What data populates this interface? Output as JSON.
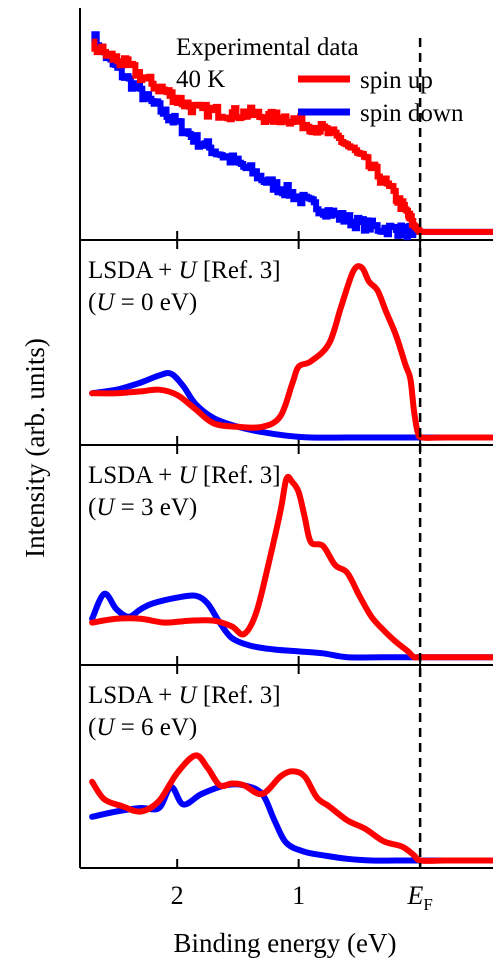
{
  "colors": {
    "spin_up": "#ff0000",
    "spin_down": "#0000ff",
    "axis": "#000000"
  },
  "chart_data": {
    "type": "line",
    "xlabel": "Binding energy (eV)",
    "ylabel": "Intensity (arb. units)",
    "xlim": [
      2.8,
      -0.6
    ],
    "x_reversed": true,
    "xticks": [
      {
        "value": 2,
        "label": "2"
      },
      {
        "value": 1,
        "label": "1"
      },
      {
        "value": 0,
        "label": "E",
        "sub": "F"
      }
    ],
    "fermi_line": {
      "x": 0,
      "style": "dashed"
    },
    "legend": {
      "placement": "top-right of top panel",
      "entries": [
        {
          "label": "spin up",
          "color": "#ff0000"
        },
        {
          "label": "spin down",
          "color": "#0000ff"
        }
      ]
    },
    "panels": [
      {
        "label_lines": [
          "Experimental data",
          "40 K"
        ],
        "noisy": true,
        "ylim": [
          0,
          1
        ],
        "series": [
          {
            "name": "spin up",
            "color": "#ff0000",
            "x": [
              2.7,
              2.55,
              2.4,
              2.25,
              2.1,
              2.0,
              1.85,
              1.7,
              1.55,
              1.4,
              1.25,
              1.1,
              0.95,
              0.8,
              0.65,
              0.5,
              0.35,
              0.2,
              0.1,
              0.05,
              0.0,
              -0.2,
              -0.4,
              -0.6
            ],
            "y": [
              0.93,
              0.88,
              0.83,
              0.76,
              0.71,
              0.67,
              0.62,
              0.61,
              0.6,
              0.6,
              0.58,
              0.58,
              0.55,
              0.52,
              0.47,
              0.39,
              0.3,
              0.19,
              0.1,
              0.05,
              0.02,
              0.02,
              0.02,
              0.02
            ]
          },
          {
            "name": "spin down",
            "color": "#0000ff",
            "x": [
              2.7,
              2.55,
              2.4,
              2.25,
              2.1,
              2.0,
              1.85,
              1.7,
              1.55,
              1.4,
              1.25,
              1.1,
              0.95,
              0.8,
              0.65,
              0.5,
              0.35,
              0.2,
              0.1,
              0.05,
              0.0,
              -0.2,
              -0.4,
              -0.6
            ],
            "y": [
              0.98,
              0.85,
              0.76,
              0.67,
              0.6,
              0.55,
              0.47,
              0.42,
              0.37,
              0.32,
              0.26,
              0.22,
              0.17,
              0.13,
              0.09,
              0.06,
              0.04,
              0.03,
              0.02,
              0.02,
              0.02,
              0.02,
              0.02,
              0.02
            ]
          }
        ]
      },
      {
        "label_lines": [
          "LSDA + U  [Ref. 3]",
          "(U = 0 eV)"
        ],
        "italic_word": "U",
        "ylim": [
          0,
          1
        ],
        "series": [
          {
            "name": "spin up",
            "color": "#ff0000",
            "x": [
              2.7,
              2.5,
              2.3,
              2.15,
              2.0,
              1.85,
              1.7,
              1.5,
              1.3,
              1.15,
              1.05,
              1.0,
              0.9,
              0.75,
              0.65,
              0.55,
              0.48,
              0.42,
              0.35,
              0.28,
              0.2,
              0.12,
              0.08,
              0.05,
              0.02,
              -0.02,
              -0.2,
              -0.4,
              -0.6
            ],
            "y": [
              0.27,
              0.27,
              0.28,
              0.29,
              0.26,
              0.18,
              0.1,
              0.08,
              0.08,
              0.14,
              0.33,
              0.42,
              0.45,
              0.55,
              0.76,
              0.96,
              0.98,
              0.9,
              0.85,
              0.73,
              0.6,
              0.43,
              0.35,
              0.17,
              0.05,
              0.02,
              0.02,
              0.02,
              0.02
            ]
          },
          {
            "name": "spin down",
            "color": "#0000ff",
            "x": [
              2.7,
              2.5,
              2.3,
              2.15,
              2.05,
              1.95,
              1.85,
              1.7,
              1.5,
              1.3,
              1.1,
              0.9,
              0.6,
              0.3,
              0.0,
              -0.3,
              -0.6
            ],
            "y": [
              0.27,
              0.29,
              0.33,
              0.37,
              0.38,
              0.31,
              0.21,
              0.13,
              0.08,
              0.05,
              0.03,
              0.02,
              0.02,
              0.02,
              0.02,
              0.02,
              0.02
            ]
          }
        ]
      },
      {
        "label_lines": [
          "LSDA + U  [Ref. 3]",
          "(U = 3 eV)"
        ],
        "italic_word": "U",
        "ylim": [
          0,
          1
        ],
        "series": [
          {
            "name": "spin up",
            "color": "#ff0000",
            "x": [
              2.7,
              2.5,
              2.3,
              2.1,
              1.9,
              1.7,
              1.55,
              1.45,
              1.35,
              1.25,
              1.15,
              1.1,
              1.05,
              1.0,
              0.95,
              0.9,
              0.8,
              0.7,
              0.6,
              0.5,
              0.4,
              0.3,
              0.2,
              0.1,
              0.05,
              0.0,
              -0.2,
              -0.4,
              -0.6
            ],
            "y": [
              0.2,
              0.22,
              0.22,
              0.2,
              0.21,
              0.21,
              0.18,
              0.14,
              0.25,
              0.5,
              0.78,
              0.95,
              0.93,
              0.88,
              0.75,
              0.62,
              0.6,
              0.5,
              0.46,
              0.34,
              0.23,
              0.16,
              0.1,
              0.05,
              0.02,
              0.02,
              0.02,
              0.02,
              0.02
            ]
          },
          {
            "name": "spin down",
            "color": "#0000ff",
            "x": [
              2.7,
              2.6,
              2.5,
              2.4,
              2.3,
              2.2,
              2.0,
              1.85,
              1.75,
              1.65,
              1.55,
              1.4,
              1.2,
              1.0,
              0.8,
              0.6,
              0.3,
              0.0,
              -0.3,
              -0.6
            ],
            "y": [
              0.22,
              0.35,
              0.27,
              0.23,
              0.27,
              0.3,
              0.33,
              0.34,
              0.3,
              0.2,
              0.12,
              0.08,
              0.06,
              0.05,
              0.04,
              0.02,
              0.02,
              0.02,
              0.02,
              0.02
            ]
          }
        ]
      },
      {
        "label_lines": [
          "LSDA + U  [Ref. 3]",
          "(U = 6 eV)"
        ],
        "italic_word": "U",
        "ylim": [
          0,
          1
        ],
        "series": [
          {
            "name": "spin up",
            "color": "#ff0000",
            "x": [
              2.7,
              2.6,
              2.45,
              2.3,
              2.15,
              2.0,
              1.85,
              1.75,
              1.65,
              1.55,
              1.45,
              1.3,
              1.15,
              1.05,
              0.95,
              0.85,
              0.75,
              0.6,
              0.45,
              0.3,
              0.15,
              0.05,
              0.0,
              -0.2,
              -0.4,
              -0.6
            ],
            "y": [
              0.47,
              0.37,
              0.33,
              0.3,
              0.36,
              0.52,
              0.62,
              0.55,
              0.45,
              0.46,
              0.45,
              0.4,
              0.5,
              0.53,
              0.5,
              0.38,
              0.33,
              0.25,
              0.2,
              0.13,
              0.1,
              0.05,
              0.02,
              0.02,
              0.02,
              0.02
            ]
          },
          {
            "name": "spin down",
            "color": "#0000ff",
            "x": [
              2.7,
              2.5,
              2.3,
              2.15,
              2.05,
              1.95,
              1.8,
              1.6,
              1.45,
              1.3,
              1.2,
              1.1,
              0.95,
              0.8,
              0.6,
              0.4,
              0.2,
              0.0,
              -0.3,
              -0.6
            ],
            "y": [
              0.27,
              0.3,
              0.32,
              0.32,
              0.44,
              0.34,
              0.4,
              0.45,
              0.45,
              0.4,
              0.25,
              0.12,
              0.07,
              0.05,
              0.03,
              0.02,
              0.02,
              0.02,
              0.02,
              0.02
            ]
          }
        ]
      }
    ]
  }
}
